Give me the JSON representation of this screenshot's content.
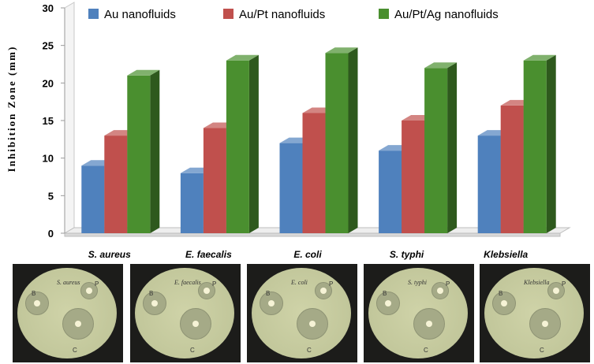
{
  "chart_data": {
    "type": "bar",
    "style": "3d-clustered",
    "ylabel": "Inhibition Zone (mm)",
    "xlabel": "",
    "ylim": [
      0,
      30
    ],
    "yticks": [
      0,
      5,
      10,
      15,
      20,
      25,
      30
    ],
    "categories": [
      "S. aureus",
      "E. faecalis",
      "E. coli",
      "S. typhi",
      "Klebsiella"
    ],
    "series": [
      {
        "name": "Au nanofluids",
        "color": "#4f81bd",
        "values": [
          9,
          8,
          12,
          11,
          13
        ]
      },
      {
        "name": "Au/Pt nanofluids",
        "color": "#c0504d",
        "values": [
          13,
          14,
          16,
          15,
          17
        ]
      },
      {
        "name": "Au/Pt/Ag nanofluids",
        "color": "#4a8f2f",
        "values": [
          21,
          23,
          24,
          22,
          23
        ]
      }
    ],
    "legend": "top",
    "grid": false
  },
  "photos": [
    {
      "label": "S. aureus",
      "markers": [
        "B",
        "P",
        "C"
      ]
    },
    {
      "label": "E. faecalis",
      "markers": [
        "B",
        "P",
        "C"
      ]
    },
    {
      "label": "E. coli",
      "markers": [
        "B",
        "P",
        "C"
      ]
    },
    {
      "label": "S. typhi",
      "markers": [
        "B",
        "P",
        "C"
      ]
    },
    {
      "label": "Klebsiella",
      "markers": [
        "B",
        "P",
        "C"
      ]
    }
  ]
}
